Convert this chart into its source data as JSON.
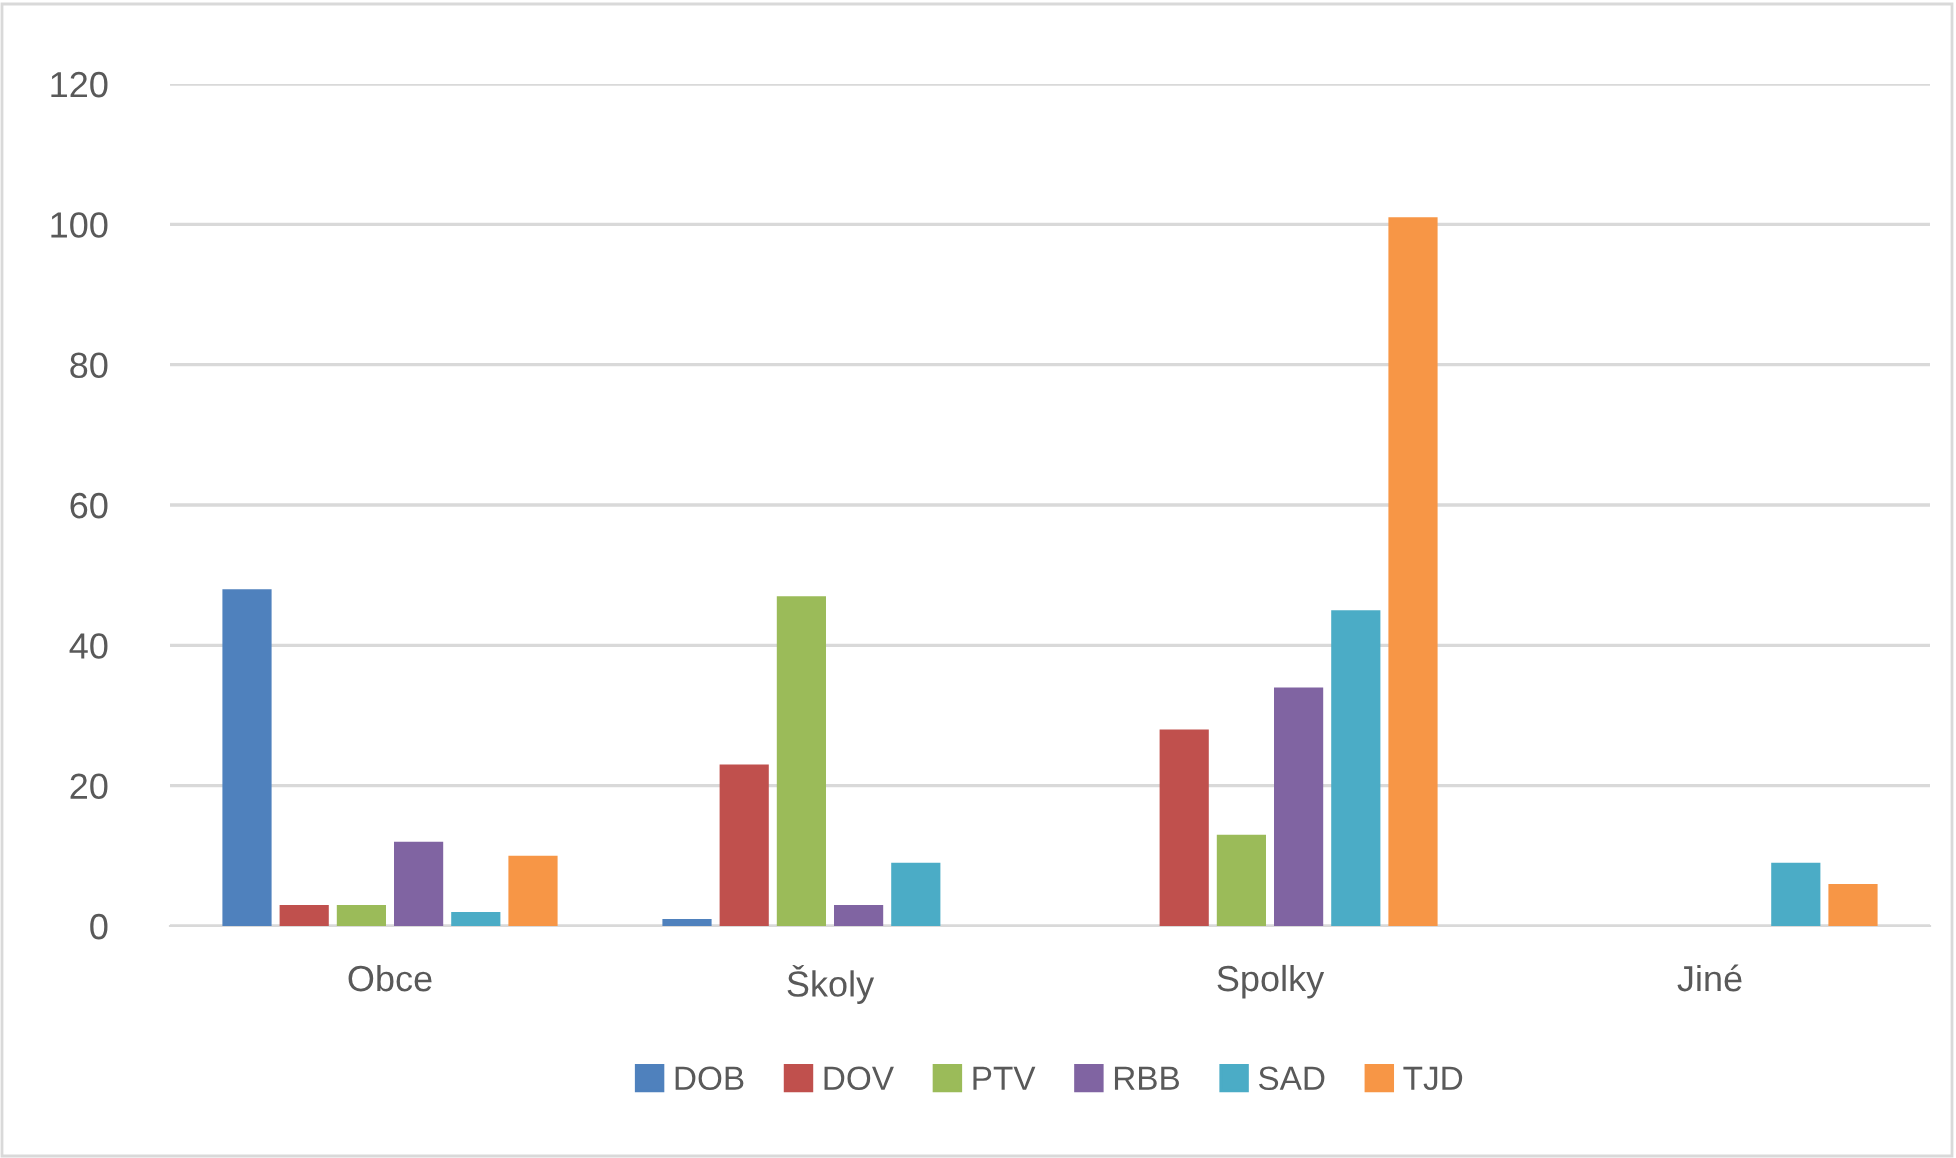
{
  "chart_data": {
    "type": "bar",
    "categories": [
      "Obce",
      "Školy",
      "Spolky",
      "Jiné"
    ],
    "series": [
      {
        "name": "DOB",
        "color": "#4f81bd",
        "values": [
          48,
          1,
          null,
          null
        ]
      },
      {
        "name": "DOV",
        "color": "#c0504d",
        "values": [
          3,
          23,
          28,
          null
        ]
      },
      {
        "name": "PTV",
        "color": "#9bbb59",
        "values": [
          3,
          47,
          13,
          null
        ]
      },
      {
        "name": "RBB",
        "color": "#8064a2",
        "values": [
          12,
          3,
          34,
          null
        ]
      },
      {
        "name": "SAD",
        "color": "#4bacc6",
        "values": [
          2,
          9,
          45,
          9
        ]
      },
      {
        "name": "TJD",
        "color": "#f79646",
        "values": [
          10,
          null,
          101,
          6
        ]
      }
    ],
    "ylim": [
      0,
      120
    ],
    "yticks": [
      0,
      20,
      40,
      60,
      80,
      100,
      120
    ],
    "grid": "y",
    "legend": "bottom"
  }
}
